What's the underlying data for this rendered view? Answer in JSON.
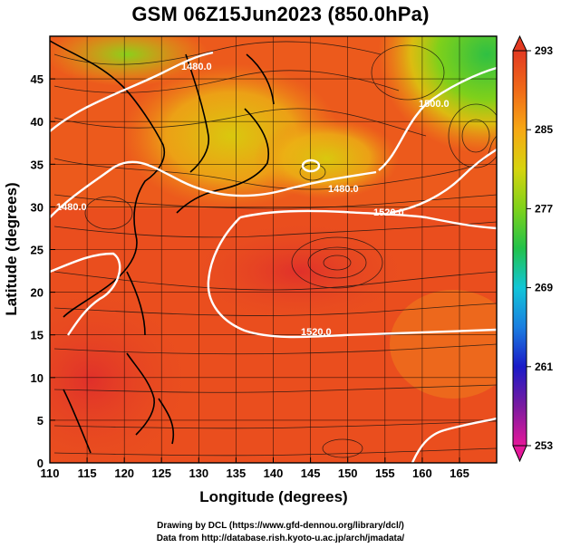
{
  "title": "GSM 06Z15Jun2023 (850.0hPa)",
  "axes": {
    "xlabel": "Longitude (degrees)",
    "ylabel": "Latitude  (degrees)",
    "xlim": [
      110,
      170
    ],
    "ylim": [
      0,
      50
    ],
    "xticks": [
      110,
      115,
      120,
      125,
      130,
      135,
      140,
      145,
      150,
      155,
      160,
      165
    ],
    "yticks": [
      0,
      5,
      10,
      15,
      20,
      25,
      30,
      35,
      40,
      45
    ]
  },
  "colorbar": {
    "labels": [
      "293",
      "285",
      "277",
      "269",
      "261",
      "253"
    ],
    "min": 253,
    "max": 293,
    "colors": [
      "#e5189a",
      "#7a1aa0",
      "#1a1ac8",
      "#1a7ee0",
      "#12c6d8",
      "#22c24a",
      "#7ed21a",
      "#d6d40e",
      "#f7a814",
      "#f06a18",
      "#e33a22"
    ]
  },
  "contour_labels": [
    "1480.0",
    "1500.0",
    "1520.0",
    "1520.0",
    "1480.0",
    "1480.0"
  ],
  "credits": {
    "line1": "Drawing by DCL (https://www.gfd-dennou.org/library/dcl/)",
    "line2": "Data from http://database.rish.kyoto-u.ac.jp/arch/jmadata/"
  }
}
